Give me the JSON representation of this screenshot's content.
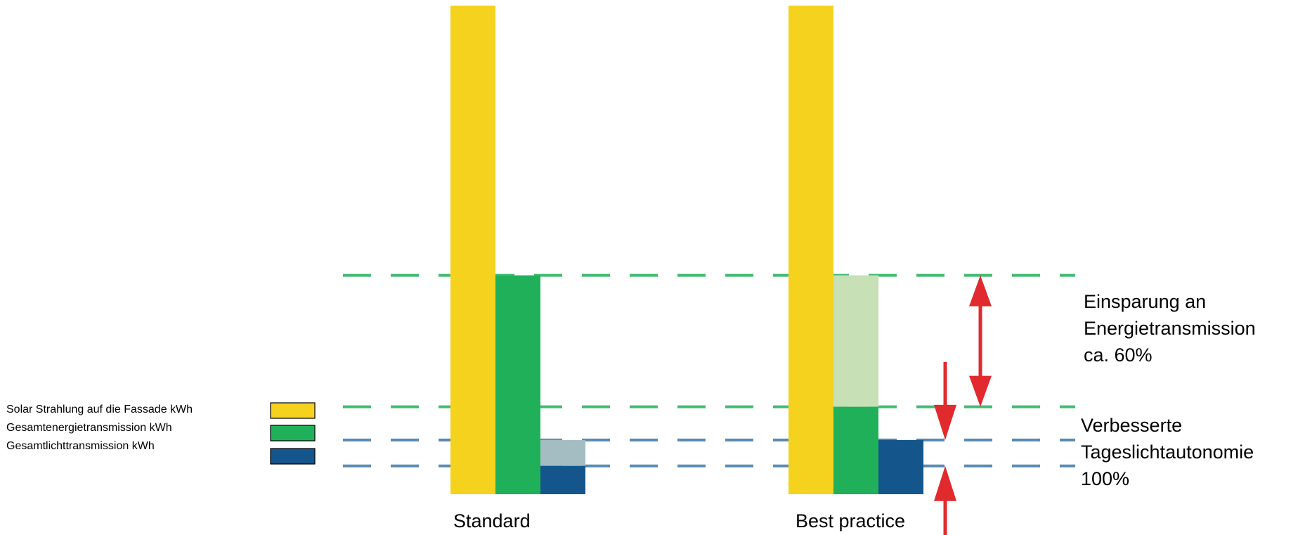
{
  "chart_data": {
    "type": "bar",
    "categories": [
      "Standard",
      "Best practice"
    ],
    "series": [
      {
        "name": "Solar Strahlung auf die Fassade  kWh",
        "values": [
          100,
          100
        ],
        "color": "#f5d21e"
      },
      {
        "name": "Gesamtenergietransmission kWh",
        "values": [
          44.8,
          17.9
        ],
        "color": "#21b05a",
        "reference_values": [
          44.8,
          44.8
        ],
        "reference_color": "#c7e0b5"
      },
      {
        "name": "Gesamtlichttransmission kWh",
        "values": [
          5.8,
          11.1
        ],
        "color": "#14568c",
        "reference_values": [
          11.1,
          11.1
        ],
        "reference_color": "#a3bdc3"
      }
    ],
    "reference_lines": [
      {
        "value": 44.8,
        "color": "#21b05a"
      },
      {
        "value": 17.9,
        "color": "#21b05a"
      },
      {
        "value": 11.1,
        "color": "#3d77a8"
      },
      {
        "value": 5.8,
        "color": "#3d77a8"
      }
    ],
    "ylim": [
      0,
      100
    ],
    "xlabel": "",
    "ylabel": "",
    "title": "",
    "annotations": [
      {
        "lines": [
          "Einsparung an",
          "Energietransmission",
          "ca. 60%"
        ]
      },
      {
        "lines": [
          "Verbesserte",
          "Tageslichtautonomie",
          "100%"
        ]
      }
    ],
    "arrow_color": "#e02a2e",
    "legend_position": "left"
  }
}
